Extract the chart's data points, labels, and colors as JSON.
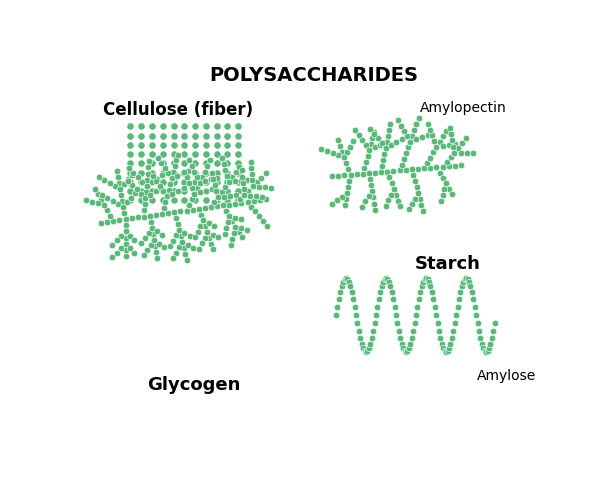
{
  "title": "POLYSACCHARIDES",
  "title_fontsize": 14,
  "background_color": "#ffffff",
  "dot_color": "#5cb87a",
  "dot_edge_color": "#ffffff",
  "labels": {
    "cellulose": "Cellulose (fiber)",
    "amylopectin": "Amylopectin",
    "starch": "Starch",
    "glycogen": "Glycogen",
    "amylose": "Amylose"
  },
  "label_fontsizes": {
    "cellulose": 12,
    "amylopectin": 10,
    "starch": 13,
    "glycogen": 13,
    "amylose": 10
  }
}
